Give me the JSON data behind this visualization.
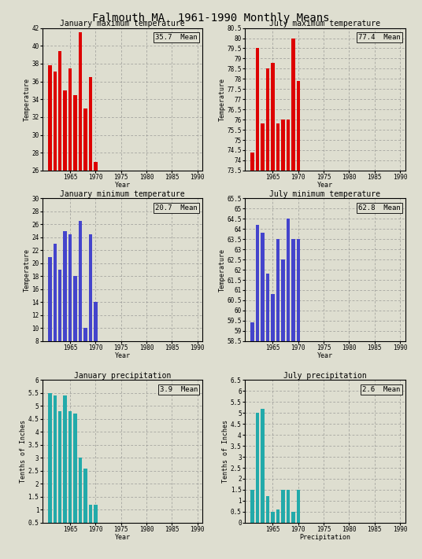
{
  "title": "Falmouth MA  1961-1990 Monthly Means",
  "jan_max_title": "January maximum temperature",
  "jul_max_title": "July maximum temperature",
  "jan_min_title": "January minimum temperature",
  "jul_min_title": "July minimum temperature",
  "jan_prec_title": "January precipitation",
  "jul_prec_title": "July precipitation",
  "jan_max_mean": 35.7,
  "jul_max_mean": 77.4,
  "jan_min_mean": 20.7,
  "jul_min_mean": 62.8,
  "jan_prec_mean": 3.9,
  "jul_prec_mean": 2.6,
  "years": [
    1961,
    1962,
    1963,
    1964,
    1965,
    1966,
    1967,
    1968,
    1969,
    1970
  ],
  "jan_max_vals": [
    37.8,
    37.1,
    39.4,
    35.0,
    37.5,
    34.5,
    41.5,
    33.0,
    36.5,
    27.0
  ],
  "jul_max_vals": [
    74.4,
    79.5,
    75.8,
    78.5,
    78.8,
    75.8,
    76.0,
    76.0,
    80.0,
    77.9
  ],
  "jan_min_vals": [
    21.0,
    23.0,
    19.0,
    25.0,
    24.5,
    18.0,
    26.5,
    10.0,
    24.5,
    14.0
  ],
  "jul_min_vals": [
    59.4,
    64.2,
    63.8,
    61.8,
    60.8,
    63.5,
    62.5,
    64.5,
    63.5,
    63.5
  ],
  "jan_prec_vals": [
    5.5,
    5.4,
    4.8,
    5.4,
    4.8,
    4.7,
    3.0,
    2.6,
    1.2,
    1.2
  ],
  "jul_prec_vals": [
    1.5,
    5.0,
    5.2,
    1.2,
    0.5,
    0.6,
    1.5,
    1.5,
    0.5,
    1.5
  ],
  "bar_color_temp": "#dd0000",
  "bar_color_min": "#4444cc",
  "bar_color_prec": "#22aaaa",
  "bg_color": "#deded0",
  "grid_color": "#888888",
  "jan_max_ylim": [
    26,
    42
  ],
  "jul_max_ylim": [
    73.5,
    80.5
  ],
  "jan_min_ylim": [
    8,
    30
  ],
  "jul_min_ylim": [
    58.5,
    65.5
  ],
  "jan_prec_ylim": [
    0.5,
    6
  ],
  "jul_prec_ylim": [
    0,
    6.5
  ],
  "xlim": [
    1959.5,
    1991
  ],
  "xticks": [
    1965,
    1970,
    1975,
    1980,
    1985,
    1990
  ],
  "jan_max_yticks": [
    26,
    28,
    30,
    32,
    34,
    36,
    38,
    40,
    42
  ],
  "jul_max_yticks": [
    73.5,
    74,
    74.5,
    75,
    75.5,
    76,
    76.5,
    77,
    77.5,
    78,
    78.5,
    79,
    79.5,
    80,
    80.5
  ],
  "jan_min_yticks": [
    8,
    10,
    12,
    14,
    16,
    18,
    20,
    22,
    24,
    26,
    28,
    30
  ],
  "jul_min_yticks": [
    58.5,
    59,
    59.5,
    60,
    60.5,
    61,
    61.5,
    62,
    62.5,
    63,
    63.5,
    64,
    64.5,
    65,
    65.5
  ],
  "jan_prec_yticks": [
    0.5,
    1,
    1.5,
    2,
    2.5,
    3,
    3.5,
    4,
    4.5,
    5,
    5.5,
    6
  ],
  "jul_prec_yticks": [
    0,
    0.5,
    1,
    1.5,
    2,
    2.5,
    3,
    3.5,
    4,
    4.5,
    5,
    5.5,
    6,
    6.5
  ]
}
